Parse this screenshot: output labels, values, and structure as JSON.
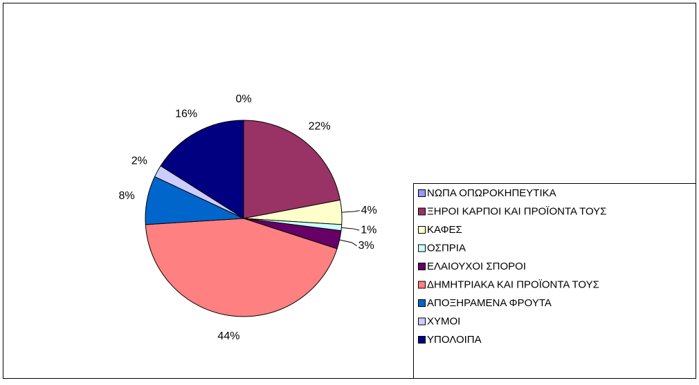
{
  "chart_data": {
    "type": "pie",
    "categories": [
      "ΝΩΠΑ ΟΠΩΡΟΚΗΠΕΥΤΙΚΑ",
      "ΞΗΡΟΙ ΚΑΡΠΟΙ ΚΑΙ ΠΡΟΪΟΝΤΑ ΤΟΥΣ",
      "ΚΑΦΕΣ",
      "ΟΣΠΡΙΑ",
      "ΕΛΑΙΟΥΧΟΙ ΣΠΟΡΟΙ",
      "ΔΗΜΗΤΡΙΑΚΑ ΚΑΙ ΠΡΟΪΟΝΤΑ ΤΟΥΣ",
      "ΑΠΟΞΗΡΑΜΕΝΑ ΦΡΟΥΤΑ",
      "ΧΥΜΟΙ",
      "ΥΠΟΛΟΙΠΑ"
    ],
    "values": [
      0,
      22,
      4,
      1,
      3,
      44,
      8,
      2,
      16
    ],
    "value_labels": [
      "0%",
      "22%",
      "4%",
      "1%",
      "3%",
      "44%",
      "8%",
      "2%",
      "16%"
    ],
    "colors": [
      "#9999FF",
      "#993366",
      "#FFFFCC",
      "#CCFFFF",
      "#660066",
      "#FF8080",
      "#0066CC",
      "#CCCCFF",
      "#000080"
    ],
    "legend": "right"
  }
}
